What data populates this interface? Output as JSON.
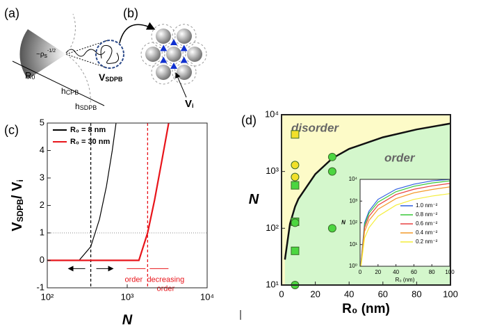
{
  "diagram": {
    "a": {
      "label": "(a)",
      "rho": [
        "~ρ",
        "s",
        "-1/2"
      ],
      "r0": [
        "R",
        "0"
      ],
      "hcpb": [
        "h",
        "CPB"
      ],
      "hsdpb": [
        "h",
        "SDPB"
      ],
      "vsdpb": [
        "V",
        "SDPB"
      ]
    },
    "b": {
      "label": "(b)",
      "vi": [
        "V",
        "i"
      ]
    }
  },
  "chart_data": [
    {
      "type": "line",
      "label": "(c)",
      "xscale": "log",
      "xlim": [
        100,
        10000
      ],
      "xticks": [
        {
          "value": 100,
          "label": "10²"
        },
        {
          "value": 1000,
          "label": "10³"
        },
        {
          "value": 10000,
          "label": "10⁴"
        }
      ],
      "ylim": [
        -1,
        5
      ],
      "yticks": [
        -1,
        0,
        1,
        2,
        3,
        4,
        5
      ],
      "xlabel": "N",
      "ylabel": [
        "V",
        "SDPB",
        "/ V",
        "i"
      ],
      "legend": "upper left",
      "series": [
        {
          "name": "R₀ = 8 nm",
          "color": "#000000",
          "x": [
            100,
            250,
            350,
            450,
            550,
            650,
            725
          ],
          "values": [
            0,
            0,
            0.5,
            1.5,
            2.7,
            4,
            5
          ]
        },
        {
          "name": "R₀ = 30 nm",
          "color": "#e8141a",
          "x": [
            100,
            1400,
            1800,
            2200,
            2700,
            3300
          ],
          "values": [
            0,
            0,
            1,
            2.2,
            3.6,
            5
          ]
        }
      ],
      "vlines": [
        {
          "value": 350,
          "color": "#000000"
        },
        {
          "value": 1800,
          "color": "#e8141a"
        }
      ],
      "hline": 1,
      "annotations": [
        [
          "order"
        ],
        [
          "decreasing",
          "order"
        ]
      ]
    },
    {
      "type": "scatter",
      "label": "(d)",
      "xlim": [
        0,
        100
      ],
      "xticks": [
        0,
        20,
        40,
        60,
        80,
        100
      ],
      "yscale": "log",
      "ylim": [
        10,
        10000
      ],
      "yticks": [
        {
          "value": 10,
          "label": "10¹"
        },
        {
          "value": 100,
          "label": "10²"
        },
        {
          "value": 1000,
          "label": "10³"
        },
        {
          "value": 10000,
          "label": "10⁴"
        }
      ],
      "xlabel": "R₀ (nm)",
      "ylabel": "N",
      "fill_above": "#fdfbc8",
      "fill_below": "#d4f7cc",
      "regions": [
        "disorder",
        "order"
      ],
      "boundary": {
        "color": "#111111",
        "x": [
          2,
          5,
          8,
          10,
          20,
          30,
          40,
          60,
          80,
          100
        ],
        "values": [
          28,
          120,
          240,
          330,
          900,
          1700,
          2500,
          4000,
          5500,
          7000
        ]
      },
      "series": [
        {
          "color": "#f2e02a",
          "marker": "square",
          "x": [
            8
          ],
          "values": [
            4500
          ]
        },
        {
          "color": "#f2e02a",
          "marker": "circle",
          "x": [
            8,
            8
          ],
          "values": [
            1300,
            800
          ]
        },
        {
          "color": "#4cd640",
          "marker": "square",
          "x": [
            8,
            8,
            8
          ],
          "values": [
            570,
            130,
            40
          ]
        },
        {
          "color": "#4cd640",
          "marker": "circle",
          "x": [
            8,
            8,
            30,
            30,
            30
          ],
          "values": [
            125,
            10,
            1800,
            1000,
            100
          ]
        }
      ]
    },
    {
      "type": "line",
      "xlim": [
        0,
        100
      ],
      "xticks": [
        0,
        20,
        40,
        60,
        80,
        100
      ],
      "yscale": "log",
      "ylim": [
        1,
        10000
      ],
      "yticks": [
        {
          "value": 1,
          "label": "10⁰"
        },
        {
          "value": 10,
          "label": "10¹"
        },
        {
          "value": 100,
          "label": "10²"
        },
        {
          "value": 1000,
          "label": "10³"
        },
        {
          "value": 10000,
          "label": "10⁴"
        }
      ],
      "xlabel": "R₀ (nm)",
      "ylabel": "N",
      "legend": "center right",
      "background": "#ffffff",
      "series": [
        {
          "name": "1.0 nm⁻²",
          "color": "#2f5fe0",
          "x": [
            1,
            5,
            10,
            20,
            40,
            60,
            80,
            100
          ],
          "values": [
            1.5,
            100,
            350,
            1200,
            3500,
            6000,
            8500,
            10000
          ]
        },
        {
          "name": "0.8 nm⁻²",
          "color": "#38c838",
          "x": [
            1,
            5,
            10,
            20,
            40,
            60,
            80,
            100
          ],
          "values": [
            1.3,
            80,
            280,
            900,
            2700,
            4800,
            6800,
            8500
          ]
        },
        {
          "name": "0.6 nm⁻²",
          "color": "#e84040",
          "x": [
            1,
            5,
            10,
            20,
            40,
            60,
            80,
            100
          ],
          "values": [
            1.2,
            60,
            200,
            650,
            2000,
            3500,
            5000,
            6500
          ]
        },
        {
          "name": "0.4 nm⁻²",
          "color": "#f49a2a",
          "x": [
            1,
            5,
            10,
            20,
            40,
            60,
            80,
            100
          ],
          "values": [
            1.1,
            40,
            130,
            420,
            1300,
            2400,
            3400,
            4500
          ]
        },
        {
          "name": "0.2 nm⁻²",
          "color": "#f4ee3a",
          "x": [
            1,
            5,
            10,
            20,
            40,
            60,
            80,
            100
          ],
          "values": [
            1,
            20,
            60,
            200,
            650,
            1200,
            1700,
            2200
          ]
        }
      ]
    }
  ]
}
